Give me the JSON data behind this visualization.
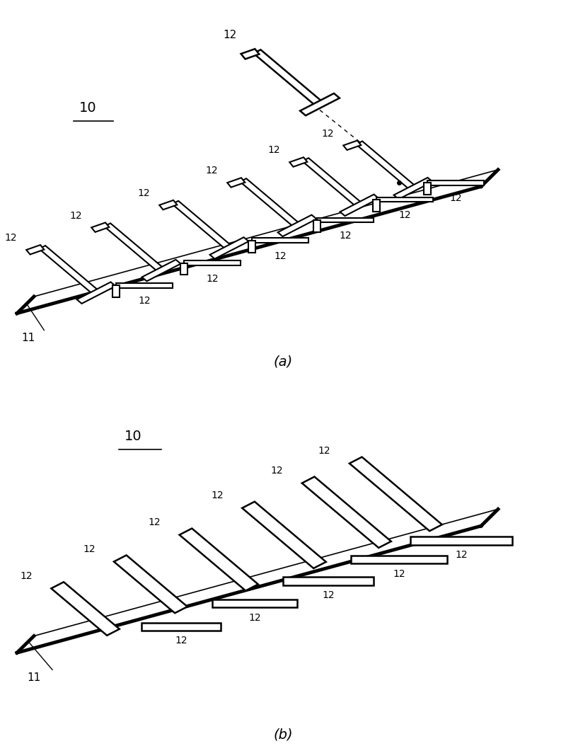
{
  "bg_color": "#ffffff",
  "line_color": "#000000",
  "label_a": "(a)",
  "label_b": "(b)",
  "fig_width": 8.0,
  "fig_height": 10.54,
  "lw_thick": 3.5,
  "lw_med": 2.0,
  "lw_thin": 1.2,
  "fontsize_label": 14,
  "fontsize_num": 11
}
